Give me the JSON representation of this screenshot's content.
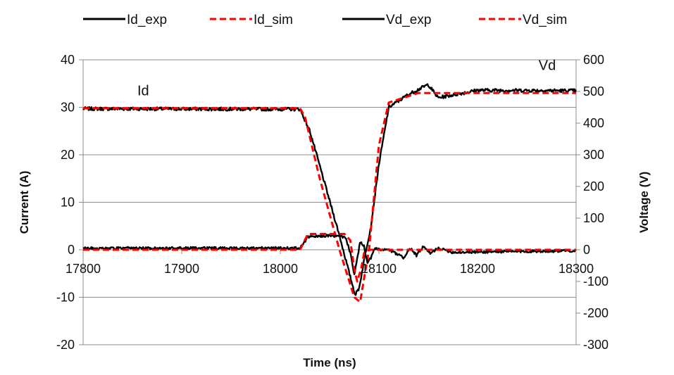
{
  "chart_data": {
    "type": "line",
    "title": "",
    "xlabel": "Time (ns)",
    "ylabel": "Current (A)",
    "y2label": "Voltage (V)",
    "xlim": [
      17800,
      18300
    ],
    "ylim": [
      -20,
      40
    ],
    "y2lim": [
      -300,
      600
    ],
    "x_ticks": [
      17800,
      17900,
      18000,
      18100,
      18200,
      18300
    ],
    "y_ticks": [
      -20,
      -10,
      0,
      10,
      20,
      30,
      40
    ],
    "y2_ticks": [
      -300,
      -200,
      -100,
      0,
      100,
      200,
      300,
      400,
      500,
      600
    ],
    "grid": "horizontal",
    "legend_position": "top",
    "annotations": [
      {
        "text": "Id",
        "x": 17855,
        "y": 32.5,
        "axis": "left"
      },
      {
        "text": "Vd",
        "x": 18262,
        "y": 568,
        "axis": "right"
      }
    ],
    "series": [
      {
        "name": "Id_exp",
        "axis": "left",
        "color": "#000000",
        "dash": "solid",
        "noise": 0.35,
        "x": [
          17800,
          18020,
          18030,
          18045,
          18060,
          18070,
          18076,
          18080,
          18086,
          18092,
          18100,
          18110,
          18130,
          18150,
          18160,
          18200,
          18300
        ],
        "y": [
          29.7,
          29.6,
          25,
          14,
          3,
          -5,
          -9.5,
          -8,
          -1,
          5,
          18,
          30,
          32.7,
          34.8,
          32,
          33.6,
          33.5
        ]
      },
      {
        "name": "Id_sim",
        "axis": "left",
        "color": "#ff0000",
        "dash": "dashed",
        "noise": 0,
        "x": [
          17800,
          18020,
          18025,
          18040,
          18060,
          18075,
          18081,
          18085,
          18090,
          18100,
          18110,
          18140,
          18300
        ],
        "y": [
          29.8,
          29.8,
          28,
          15,
          0,
          -10,
          -11,
          -6,
          0,
          22,
          31,
          33,
          33
        ]
      },
      {
        "name": "Vd_exp",
        "axis": "right",
        "color": "#000000",
        "dash": "solid",
        "noise": 4,
        "x": [
          17800,
          18020,
          18028,
          18050,
          18066,
          18072,
          18075,
          18078,
          18081,
          18085,
          18088,
          18092,
          18096,
          18100,
          18110,
          18125,
          18132,
          18138,
          18145,
          18152,
          18160,
          18175,
          18300
        ],
        "y": [
          5,
          5,
          40,
          45,
          40,
          -20,
          -80,
          -30,
          25,
          10,
          -40,
          -25,
          5,
          0,
          0,
          -25,
          5,
          -18,
          10,
          -12,
          5,
          -8,
          -3
        ]
      },
      {
        "name": "Vd_sim",
        "axis": "right",
        "color": "#ff0000",
        "dash": "dashed",
        "noise": 0,
        "x": [
          17800,
          18020,
          18028,
          18065,
          18071,
          18075,
          18078,
          18082,
          18085,
          18090,
          18100,
          18300
        ],
        "y": [
          0,
          0,
          50,
          50,
          30,
          -60,
          -100,
          -60,
          -10,
          0,
          0,
          0
        ]
      }
    ]
  }
}
